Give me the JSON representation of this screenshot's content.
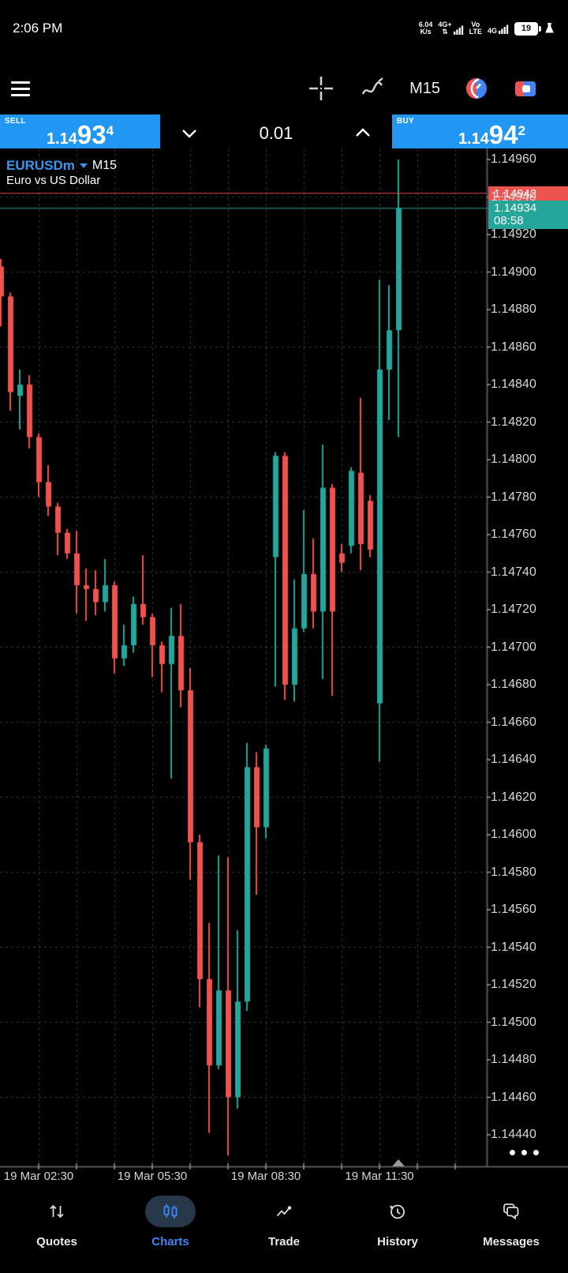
{
  "status_bar": {
    "time": "2:06 PM",
    "net_speed_value": "6.04",
    "net_speed_unit": "K/s",
    "sim1_type": "4G+",
    "volte_line1": "Vo",
    "volte_line2": "LTE",
    "sim2_type": "4G",
    "battery_percent": "19"
  },
  "toolbar": {
    "timeframe": "M15"
  },
  "trade_bar": {
    "sell_label": "SELL",
    "sell_price": {
      "prefix": "1.14",
      "big": "93",
      "sup": "4"
    },
    "volume": "0.01",
    "buy_label": "BUY",
    "buy_price": {
      "prefix": "1.14",
      "big": "94",
      "sup": "2"
    }
  },
  "chart_header": {
    "symbol": "EURUSDm",
    "timeframe": "M15",
    "description": "Euro vs US Dollar"
  },
  "chart_data": {
    "type": "candlestick",
    "symbol": "EURUSDm",
    "timeframe": "M15",
    "title": "Euro vs US Dollar",
    "ask": 1.14942,
    "bid": 1.14934,
    "ask_label": "1.14942",
    "bid_label": "1.14934",
    "bar_countdown": "08:58",
    "ylim": [
      1.1444,
      1.1496
    ],
    "y_tick_step": 0.0002,
    "grid": true,
    "y_axis_labels": [
      "1.14960",
      "1.14940",
      "1.14920",
      "1.14900",
      "1.14880",
      "1.14860",
      "1.14840",
      "1.14820",
      "1.14800",
      "1.14780",
      "1.14760",
      "1.14740",
      "1.14720",
      "1.14700",
      "1.14680",
      "1.14660",
      "1.14640",
      "1.14620",
      "1.14600",
      "1.14580",
      "1.14560",
      "1.14540",
      "1.14520",
      "1.14500",
      "1.14480",
      "1.14460",
      "1.14440"
    ],
    "x_axis_labels": [
      {
        "text": "19 Mar 02:30",
        "candle_index": 4
      },
      {
        "text": "19 Mar 05:30",
        "candle_index": 16
      },
      {
        "text": "19 Mar 08:30",
        "candle_index": 28
      },
      {
        "text": "19 Mar 11:30",
        "candle_index": 40
      }
    ],
    "colors": {
      "bull": "#26A69A",
      "bear": "#EF5350",
      "ask_line": "#EF5350",
      "bid_line": "#26A69A",
      "grid": "#33363b",
      "border": "#55585c",
      "axis_text": "#D5D7DA"
    },
    "candles": [
      {
        "t": "01:30",
        "o": 1.14903,
        "h": 1.14907,
        "l": 1.14871,
        "c": 1.14887
      },
      {
        "t": "01:45",
        "o": 1.14887,
        "h": 1.14889,
        "l": 1.14826,
        "c": 1.14836
      },
      {
        "t": "02:00",
        "o": 1.14834,
        "h": 1.14848,
        "l": 1.14816,
        "c": 1.1484
      },
      {
        "t": "02:15",
        "o": 1.1484,
        "h": 1.14845,
        "l": 1.14806,
        "c": 1.14812
      },
      {
        "t": "02:30",
        "o": 1.14812,
        "h": 1.14814,
        "l": 1.1478,
        "c": 1.14788
      },
      {
        "t": "02:45",
        "o": 1.14788,
        "h": 1.14797,
        "l": 1.1477,
        "c": 1.14775
      },
      {
        "t": "03:00",
        "o": 1.14775,
        "h": 1.14777,
        "l": 1.14749,
        "c": 1.14761
      },
      {
        "t": "03:15",
        "o": 1.14761,
        "h": 1.14763,
        "l": 1.14747,
        "c": 1.1475
      },
      {
        "t": "03:30",
        "o": 1.1475,
        "h": 1.14762,
        "l": 1.14718,
        "c": 1.14733
      },
      {
        "t": "03:45",
        "o": 1.14733,
        "h": 1.14742,
        "l": 1.14714,
        "c": 1.14731
      },
      {
        "t": "04:00",
        "o": 1.14731,
        "h": 1.14741,
        "l": 1.14717,
        "c": 1.14724
      },
      {
        "t": "04:15",
        "o": 1.14724,
        "h": 1.14747,
        "l": 1.14719,
        "c": 1.14733
      },
      {
        "t": "04:30",
        "o": 1.14733,
        "h": 1.14735,
        "l": 1.14686,
        "c": 1.14694
      },
      {
        "t": "04:45",
        "o": 1.14694,
        "h": 1.14712,
        "l": 1.1469,
        "c": 1.14701
      },
      {
        "t": "05:00",
        "o": 1.14701,
        "h": 1.14727,
        "l": 1.14697,
        "c": 1.14723
      },
      {
        "t": "05:15",
        "o": 1.14723,
        "h": 1.14749,
        "l": 1.14712,
        "c": 1.14716
      },
      {
        "t": "05:30",
        "o": 1.14716,
        "h": 1.14718,
        "l": 1.14684,
        "c": 1.14701
      },
      {
        "t": "05:45",
        "o": 1.14701,
        "h": 1.14703,
        "l": 1.14676,
        "c": 1.14691
      },
      {
        "t": "06:00",
        "o": 1.14691,
        "h": 1.14721,
        "l": 1.1463,
        "c": 1.14706
      },
      {
        "t": "06:15",
        "o": 1.14706,
        "h": 1.14723,
        "l": 1.14668,
        "c": 1.14677
      },
      {
        "t": "06:30",
        "o": 1.14677,
        "h": 1.14689,
        "l": 1.14576,
        "c": 1.14596
      },
      {
        "t": "06:45",
        "o": 1.14596,
        "h": 1.146,
        "l": 1.14508,
        "c": 1.14523
      },
      {
        "t": "07:00",
        "o": 1.14523,
        "h": 1.14553,
        "l": 1.14441,
        "c": 1.14477
      },
      {
        "t": "07:15",
        "o": 1.14477,
        "h": 1.14589,
        "l": 1.14475,
        "c": 1.14517
      },
      {
        "t": "07:30",
        "o": 1.14517,
        "h": 1.14588,
        "l": 1.14429,
        "c": 1.1446
      },
      {
        "t": "07:45",
        "o": 1.1446,
        "h": 1.14549,
        "l": 1.14454,
        "c": 1.14511
      },
      {
        "t": "08:00",
        "o": 1.14511,
        "h": 1.14649,
        "l": 1.14506,
        "c": 1.14636
      },
      {
        "t": "08:15",
        "o": 1.14636,
        "h": 1.14644,
        "l": 1.14568,
        "c": 1.14604
      },
      {
        "t": "08:30",
        "o": 1.14604,
        "h": 1.14648,
        "l": 1.14598,
        "c": 1.14646
      },
      {
        "t": "08:45",
        "o": 1.14748,
        "h": 1.14804,
        "l": 1.14679,
        "c": 1.14802
      },
      {
        "t": "09:00",
        "o": 1.14802,
        "h": 1.14804,
        "l": 1.14672,
        "c": 1.1468
      },
      {
        "t": "09:15",
        "o": 1.1468,
        "h": 1.14736,
        "l": 1.14671,
        "c": 1.1471
      },
      {
        "t": "09:30",
        "o": 1.1471,
        "h": 1.14773,
        "l": 1.14708,
        "c": 1.14739
      },
      {
        "t": "09:45",
        "o": 1.14739,
        "h": 1.14758,
        "l": 1.1471,
        "c": 1.14719
      },
      {
        "t": "10:00",
        "o": 1.14719,
        "h": 1.14808,
        "l": 1.14683,
        "c": 1.14785
      },
      {
        "t": "10:15",
        "o": 1.14785,
        "h": 1.14787,
        "l": 1.14674,
        "c": 1.14719
      },
      {
        "t": "10:30",
        "o": 1.1475,
        "h": 1.14755,
        "l": 1.1474,
        "c": 1.14745
      },
      {
        "t": "10:45",
        "o": 1.14754,
        "h": 1.14796,
        "l": 1.1475,
        "c": 1.14794
      },
      {
        "t": "11:00",
        "o": 1.14793,
        "h": 1.14833,
        "l": 1.14741,
        "c": 1.14755
      },
      {
        "t": "11:15",
        "o": 1.14778,
        "h": 1.14781,
        "l": 1.14748,
        "c": 1.14752
      },
      {
        "t": "11:30",
        "o": 1.1467,
        "h": 1.14896,
        "l": 1.14639,
        "c": 1.14848
      },
      {
        "t": "11:45",
        "o": 1.14848,
        "h": 1.14893,
        "l": 1.14821,
        "c": 1.14869
      },
      {
        "t": "12:00",
        "o": 1.14869,
        "h": 1.1496,
        "l": 1.14812,
        "c": 1.14934
      }
    ]
  },
  "bottom_nav": {
    "items": [
      {
        "label": "Quotes",
        "active": false
      },
      {
        "label": "Charts",
        "active": true
      },
      {
        "label": "Trade",
        "active": false
      },
      {
        "label": "History",
        "active": false
      },
      {
        "label": "Messages",
        "active": false
      }
    ]
  }
}
